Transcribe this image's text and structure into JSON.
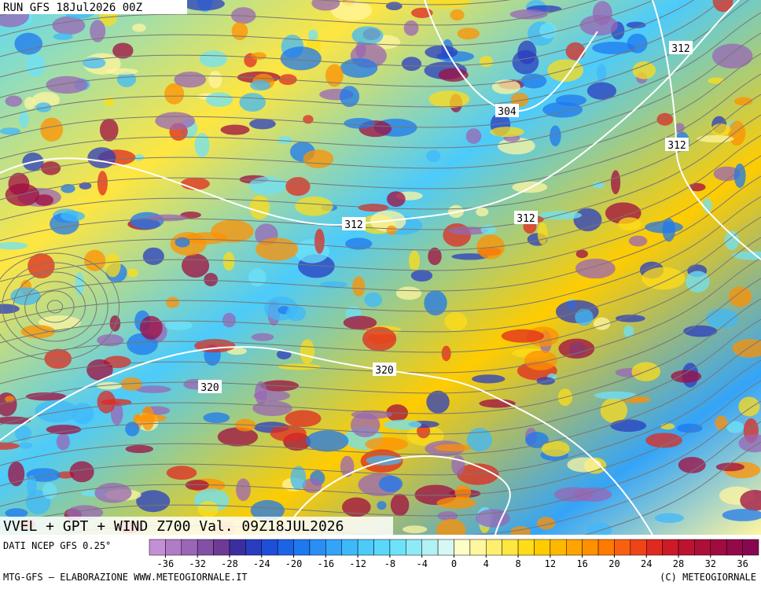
{
  "header": {
    "run": "RUN GFS 18Jul2026 00Z"
  },
  "contour_labels": [
    "312",
    "304",
    "312",
    "312",
    "312",
    "320",
    "320"
  ],
  "map_title": "VVEL + GPT + WIND Z700 Val. 09Z18JUL2026",
  "source": "DATI NCEP GFS 0.25°",
  "colorbar": {
    "lim": [
      -38,
      38
    ],
    "ticks": [
      -36,
      -32,
      -28,
      -24,
      -20,
      -16,
      -12,
      -8,
      -4,
      0,
      4,
      8,
      12,
      16,
      20,
      24,
      28,
      32,
      36
    ],
    "colors": [
      "#c58fd6",
      "#b07cc6",
      "#9a66b6",
      "#8450a6",
      "#6e3a96",
      "#3b2fa0",
      "#2a3cc0",
      "#1f4fd8",
      "#1c64e6",
      "#1e78ef",
      "#2a8ef5",
      "#34a4f8",
      "#3fb8fa",
      "#4ccbfb",
      "#5ad8fa",
      "#6ee2f8",
      "#8eeaf6",
      "#b2f1f4",
      "#d6f8f4",
      "#fdfdc8",
      "#fff6a0",
      "#ffee70",
      "#ffe640",
      "#ffdc18",
      "#ffcc00",
      "#ffb800",
      "#ffa400",
      "#ff9000",
      "#ff7a00",
      "#f86010",
      "#ee4418",
      "#e02a20",
      "#cc1a28",
      "#bc1430",
      "#ac1038",
      "#a00c40",
      "#940a48",
      "#880850"
    ]
  },
  "footer": {
    "left": "MTG-GFS — ELABORAZIONE WWW.METEOGIORNALE.IT",
    "right": "(C) METEOGIORNALE"
  }
}
